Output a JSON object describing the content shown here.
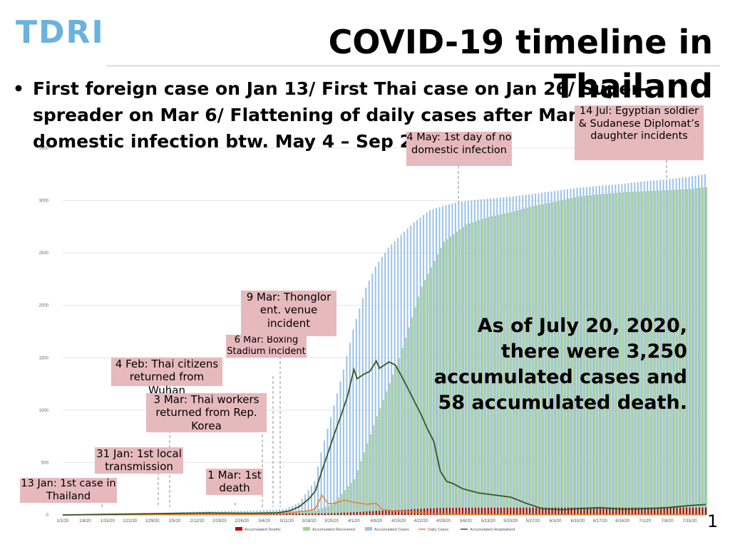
{
  "header": {
    "logo": "TDRI",
    "title": "COVID-19 timeline in Thailand"
  },
  "bullet": "First foreign case on Jan 13/ First Thai case on Jan 26/ Super-spreader on Mar 6/ Flattening of daily cases after March 22/ No domestic infection btw. May 4 – Sep 2",
  "summary": "As of July 20, 2020, there were 3,250 accumulated cases and 58 accumulated death.",
  "page_number": "1",
  "annotations": [
    {
      "id": "jan13",
      "text": "13 Jan: 1st case in Thailand"
    },
    {
      "id": "jan31",
      "text": "31 Jan: 1st local transmission"
    },
    {
      "id": "feb4",
      "text": "4 Feb: Thai citizens returned from Wuhan"
    },
    {
      "id": "mar1",
      "text": "1 Mar: 1st death"
    },
    {
      "id": "mar3",
      "text": "3 Mar: Thai workers returned from Rep. Korea"
    },
    {
      "id": "mar6",
      "text": "6 Mar: Boxing Stadium incident"
    },
    {
      "id": "mar9",
      "text": "9 Mar: Thonglor ent. venue incident"
    },
    {
      "id": "may4",
      "text": "4 May: 1st day of no domestic infection"
    },
    {
      "id": "jul14",
      "text": "14 Jul: Egyptian soldier & Sudanese Diplomat’s daughter incidents"
    }
  ],
  "chart_data": {
    "type": "bar",
    "title": "",
    "xlabel": "",
    "ylabel": "",
    "ylim": [
      0,
      3500
    ],
    "yticks": [
      0,
      500,
      1000,
      1500,
      2000,
      2500,
      3000,
      3500
    ],
    "xticks": [
      "1/1/20",
      "1/8/20",
      "1/15/20",
      "1/22/20",
      "1/29/20",
      "2/5/20",
      "2/12/20",
      "2/19/20",
      "2/26/20",
      "3/4/20",
      "3/11/20",
      "3/18/20",
      "3/25/20",
      "4/1/20",
      "4/8/20",
      "4/15/20",
      "4/22/20",
      "4/29/20",
      "5/6/20",
      "5/13/20",
      "5/20/20",
      "5/27/20",
      "6/3/20",
      "6/10/20",
      "6/17/20",
      "6/24/20",
      "7/1/20",
      "7/8/20",
      "7/15/20"
    ],
    "grid": true,
    "legend_position": "bottom",
    "colors": {
      "deaths": "#c00000",
      "recovered": "#a9d18e",
      "cases": "#9dc3e6",
      "daily": "#ed7d31",
      "hospitalised": "#375623"
    },
    "series": [
      {
        "key": "deaths",
        "name": "Accumulated Deaths",
        "type": "bar",
        "points": [
          [
            "1/1/20",
            0
          ],
          [
            "3/1/20",
            1
          ],
          [
            "3/20/20",
            1
          ],
          [
            "3/25/20",
            4
          ],
          [
            "4/1/20",
            12
          ],
          [
            "4/8/20",
            26
          ],
          [
            "4/15/20",
            33
          ],
          [
            "4/22/20",
            47
          ],
          [
            "4/29/20",
            54
          ],
          [
            "5/13/20",
            56
          ],
          [
            "5/20/20",
            56
          ],
          [
            "7/20/20",
            58
          ]
        ]
      },
      {
        "key": "recovered",
        "name": "Accumulated Recovered",
        "type": "bar",
        "points": [
          [
            "1/1/20",
            0
          ],
          [
            "2/15/20",
            10
          ],
          [
            "3/5/20",
            31
          ],
          [
            "3/20/20",
            44
          ],
          [
            "3/25/20",
            97
          ],
          [
            "4/1/20",
            342
          ],
          [
            "4/8/20",
            940
          ],
          [
            "4/15/20",
            1497
          ],
          [
            "4/22/20",
            2180
          ],
          [
            "4/29/20",
            2609
          ],
          [
            "5/6/20",
            2772
          ],
          [
            "5/13/20",
            2844
          ],
          [
            "5/20/20",
            2890
          ],
          [
            "5/27/20",
            2950
          ],
          [
            "6/3/20",
            2990
          ],
          [
            "6/10/20",
            3040
          ],
          [
            "6/17/20",
            3060
          ],
          [
            "6/24/20",
            3080
          ],
          [
            "7/1/20",
            3090
          ],
          [
            "7/8/20",
            3100
          ],
          [
            "7/15/20",
            3110
          ],
          [
            "7/20/20",
            3130
          ]
        ]
      },
      {
        "key": "cases",
        "name": "Accumulated Cases",
        "type": "bar",
        "points": [
          [
            "1/1/20",
            0
          ],
          [
            "1/13/20",
            1
          ],
          [
            "1/26/20",
            8
          ],
          [
            "2/5/20",
            25
          ],
          [
            "2/15/20",
            34
          ],
          [
            "3/1/20",
            42
          ],
          [
            "3/6/20",
            48
          ],
          [
            "3/11/20",
            60
          ],
          [
            "3/15/20",
            114
          ],
          [
            "3/20/20",
            322
          ],
          [
            "3/22/20",
            599
          ],
          [
            "3/25/20",
            934
          ],
          [
            "3/29/20",
            1388
          ],
          [
            "4/1/20",
            1771
          ],
          [
            "4/5/20",
            2169
          ],
          [
            "4/8/20",
            2369
          ],
          [
            "4/12/20",
            2551
          ],
          [
            "4/15/20",
            2643
          ],
          [
            "4/20/20",
            2792
          ],
          [
            "4/25/20",
            2907
          ],
          [
            "4/29/20",
            2947
          ],
          [
            "5/4/20",
            2987
          ],
          [
            "5/10/20",
            3009
          ],
          [
            "5/20/20",
            3037
          ],
          [
            "5/27/20",
            3062
          ],
          [
            "6/3/20",
            3091
          ],
          [
            "6/10/20",
            3121
          ],
          [
            "6/17/20",
            3141
          ],
          [
            "6/24/20",
            3158
          ],
          [
            "7/1/20",
            3185
          ],
          [
            "7/8/20",
            3202
          ],
          [
            "7/15/20",
            3227
          ],
          [
            "7/20/20",
            3250
          ]
        ]
      },
      {
        "key": "daily",
        "name": "Daily Cases",
        "type": "line",
        "points": [
          [
            "1/1/20",
            0
          ],
          [
            "3/1/20",
            5
          ],
          [
            "3/13/20",
            20
          ],
          [
            "3/15/20",
            32
          ],
          [
            "3/18/20",
            40
          ],
          [
            "3/20/20",
            60
          ],
          [
            "3/22/20",
            188
          ],
          [
            "3/24/20",
            106
          ],
          [
            "3/26/20",
            111
          ],
          [
            "3/29/20",
            143
          ],
          [
            "4/1/20",
            120
          ],
          [
            "4/5/20",
            102
          ],
          [
            "4/8/20",
            111
          ],
          [
            "4/10/20",
            50
          ],
          [
            "4/12/20",
            45
          ],
          [
            "4/14/20",
            34
          ],
          [
            "4/20/20",
            27
          ],
          [
            "4/25/20",
            15
          ],
          [
            "5/1/20",
            6
          ],
          [
            "5/10/20",
            5
          ],
          [
            "5/20/20",
            3
          ],
          [
            "6/10/20",
            3
          ],
          [
            "7/20/20",
            2
          ]
        ]
      },
      {
        "key": "hospitalised",
        "name": "Accumulated Hospitalised",
        "type": "line",
        "points": [
          [
            "1/1/20",
            0
          ],
          [
            "2/5/20",
            15
          ],
          [
            "2/15/20",
            20
          ],
          [
            "3/1/20",
            16
          ],
          [
            "3/8/20",
            20
          ],
          [
            "3/12/20",
            40
          ],
          [
            "3/15/20",
            80
          ],
          [
            "3/18/20",
            155
          ],
          [
            "3/20/20",
            230
          ],
          [
            "3/22/20",
            420
          ],
          [
            "3/24/20",
            600
          ],
          [
            "3/26/20",
            780
          ],
          [
            "3/28/20",
            950
          ],
          [
            "3/30/20",
            1130
          ],
          [
            "4/1/20",
            1390
          ],
          [
            "4/2/20",
            1300
          ],
          [
            "4/4/20",
            1340
          ],
          [
            "4/6/20",
            1370
          ],
          [
            "4/8/20",
            1470
          ],
          [
            "4/9/20",
            1400
          ],
          [
            "4/10/20",
            1420
          ],
          [
            "4/12/20",
            1460
          ],
          [
            "4/14/20",
            1430
          ],
          [
            "4/16/20",
            1320
          ],
          [
            "4/18/20",
            1200
          ],
          [
            "4/20/20",
            1080
          ],
          [
            "4/22/20",
            960
          ],
          [
            "4/24/20",
            820
          ],
          [
            "4/26/20",
            700
          ],
          [
            "4/28/20",
            420
          ],
          [
            "4/30/20",
            320
          ],
          [
            "5/2/20",
            300
          ],
          [
            "5/5/20",
            250
          ],
          [
            "5/10/20",
            210
          ],
          [
            "5/15/20",
            190
          ],
          [
            "5/20/20",
            170
          ],
          [
            "5/25/20",
            110
          ],
          [
            "5/30/20",
            60
          ],
          [
            "6/5/20",
            50
          ],
          [
            "6/10/20",
            60
          ],
          [
            "6/17/20",
            70
          ],
          [
            "6/24/20",
            55
          ],
          [
            "7/1/20",
            60
          ],
          [
            "7/8/20",
            70
          ],
          [
            "7/15/20",
            90
          ],
          [
            "7/20/20",
            100
          ]
        ]
      }
    ]
  }
}
